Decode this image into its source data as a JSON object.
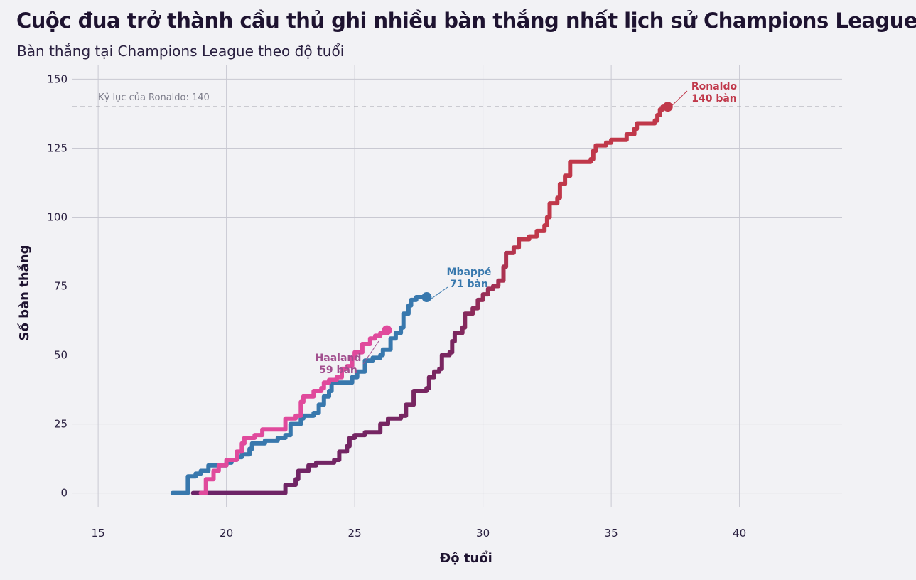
{
  "title": "Cuộc đua trở thành cầu thủ ghi nhiều bàn thắng nhất lịch sử Champions League",
  "subtitle": "Bàn thắng tại Champions League theo độ tuổi",
  "chart_data": {
    "type": "line",
    "title": "Cuộc đua trở thành cầu thủ ghi nhiều bàn thắng nhất lịch sử Champions League",
    "subtitle": "Bàn thắng tại Champions League theo độ tuổi",
    "xlabel": "Độ tuổi",
    "ylabel": "Số bàn thắng",
    "xlim": [
      14,
      44
    ],
    "ylim": [
      -5,
      155
    ],
    "x_ticks": [
      15,
      20,
      25,
      30,
      35,
      40
    ],
    "y_ticks": [
      0,
      25,
      50,
      75,
      100,
      125,
      150
    ],
    "grid": true,
    "step": true,
    "reference_line": {
      "y": 140,
      "label": "Kỷ lục của Ronaldo: 140",
      "style": "dashed",
      "color": "#8a8a95"
    },
    "series": [
      {
        "name": "Ronaldo",
        "color": "#c0384a",
        "gradient_from": "#6b2468",
        "label_line1": "Ronaldo",
        "label_line2": "140 bàn",
        "points": [
          [
            18.7,
            0
          ],
          [
            22.2,
            0
          ],
          [
            22.3,
            3
          ],
          [
            22.7,
            5
          ],
          [
            22.8,
            8
          ],
          [
            23.2,
            10
          ],
          [
            23.5,
            11
          ],
          [
            24.2,
            12
          ],
          [
            24.4,
            15
          ],
          [
            24.7,
            17
          ],
          [
            24.8,
            20
          ],
          [
            25.0,
            21
          ],
          [
            25.4,
            22
          ],
          [
            25.9,
            22
          ],
          [
            26.0,
            25
          ],
          [
            26.3,
            27
          ],
          [
            26.8,
            28
          ],
          [
            27.0,
            32
          ],
          [
            27.3,
            37
          ],
          [
            27.8,
            38
          ],
          [
            27.9,
            42
          ],
          [
            28.1,
            44
          ],
          [
            28.3,
            45
          ],
          [
            28.4,
            50
          ],
          [
            28.7,
            51
          ],
          [
            28.8,
            55
          ],
          [
            28.9,
            58
          ],
          [
            29.2,
            60
          ],
          [
            29.3,
            65
          ],
          [
            29.6,
            67
          ],
          [
            29.8,
            70
          ],
          [
            30.0,
            72
          ],
          [
            30.2,
            74
          ],
          [
            30.4,
            75
          ],
          [
            30.6,
            77
          ],
          [
            30.8,
            82
          ],
          [
            30.9,
            87
          ],
          [
            31.2,
            89
          ],
          [
            31.4,
            92
          ],
          [
            31.8,
            93
          ],
          [
            32.1,
            95
          ],
          [
            32.4,
            97
          ],
          [
            32.5,
            100
          ],
          [
            32.6,
            105
          ],
          [
            32.9,
            107
          ],
          [
            33.0,
            112
          ],
          [
            33.2,
            115
          ],
          [
            33.4,
            120
          ],
          [
            33.8,
            120
          ],
          [
            34.2,
            121
          ],
          [
            34.3,
            124
          ],
          [
            34.4,
            126
          ],
          [
            34.8,
            127
          ],
          [
            35.0,
            128
          ],
          [
            35.5,
            128
          ],
          [
            35.6,
            130
          ],
          [
            35.9,
            132
          ],
          [
            36.0,
            134
          ],
          [
            36.7,
            135
          ],
          [
            36.8,
            137
          ],
          [
            36.9,
            139
          ],
          [
            37.0,
            140
          ],
          [
            37.15,
            140
          ]
        ]
      },
      {
        "name": "Mbappé",
        "color": "#3878ad",
        "label_line1": "Mbappé",
        "label_line2": "71 bàn",
        "points": [
          [
            17.9,
            0
          ],
          [
            18.3,
            0
          ],
          [
            18.5,
            6
          ],
          [
            18.8,
            7
          ],
          [
            19.0,
            8
          ],
          [
            19.3,
            10
          ],
          [
            19.8,
            10
          ],
          [
            20.0,
            11
          ],
          [
            20.2,
            12
          ],
          [
            20.4,
            13
          ],
          [
            20.6,
            14
          ],
          [
            20.9,
            16
          ],
          [
            21.0,
            18
          ],
          [
            21.5,
            19
          ],
          [
            22.0,
            20
          ],
          [
            22.3,
            21
          ],
          [
            22.5,
            25
          ],
          [
            22.9,
            27
          ],
          [
            23.0,
            28
          ],
          [
            23.4,
            29
          ],
          [
            23.6,
            32
          ],
          [
            23.8,
            35
          ],
          [
            24.0,
            37
          ],
          [
            24.1,
            40
          ],
          [
            24.6,
            40
          ],
          [
            24.9,
            42
          ],
          [
            25.1,
            44
          ],
          [
            25.4,
            48
          ],
          [
            25.7,
            49
          ],
          [
            26.0,
            50
          ],
          [
            26.1,
            52
          ],
          [
            26.4,
            56
          ],
          [
            26.6,
            58
          ],
          [
            26.8,
            60
          ],
          [
            26.9,
            65
          ],
          [
            27.1,
            68
          ],
          [
            27.2,
            70
          ],
          [
            27.4,
            71
          ],
          [
            27.75,
            71
          ]
        ]
      },
      {
        "name": "Haaland",
        "color": "#e04a9c",
        "label_line1": "Haaland",
        "label_line2": "59 bàn",
        "points": [
          [
            19.0,
            0
          ],
          [
            19.2,
            5
          ],
          [
            19.5,
            8
          ],
          [
            19.7,
            10
          ],
          [
            20.0,
            12
          ],
          [
            20.4,
            15
          ],
          [
            20.6,
            18
          ],
          [
            20.7,
            20
          ],
          [
            21.1,
            21
          ],
          [
            21.4,
            23
          ],
          [
            22.1,
            23
          ],
          [
            22.3,
            27
          ],
          [
            22.7,
            28
          ],
          [
            22.9,
            33
          ],
          [
            23.0,
            35
          ],
          [
            23.4,
            37
          ],
          [
            23.7,
            38
          ],
          [
            23.8,
            40
          ],
          [
            24.0,
            41
          ],
          [
            24.3,
            42
          ],
          [
            24.5,
            45
          ],
          [
            24.7,
            46
          ],
          [
            24.9,
            49
          ],
          [
            25.0,
            51
          ],
          [
            25.3,
            54
          ],
          [
            25.6,
            56
          ],
          [
            25.8,
            57
          ],
          [
            26.0,
            58
          ],
          [
            26.2,
            59
          ]
        ]
      }
    ]
  }
}
